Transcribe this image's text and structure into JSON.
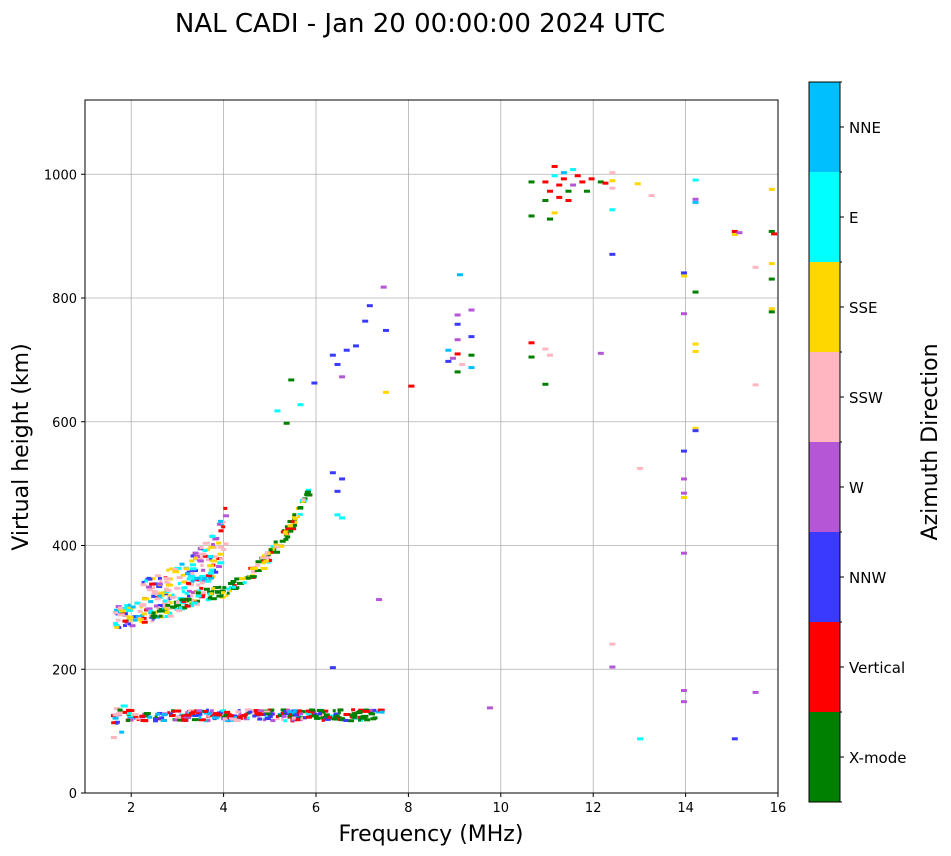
{
  "chart_data": {
    "type": "scatter",
    "title": "NAL CADI - Jan 20 00:00:00 2024 UTC",
    "xlabel": "Frequency (MHz)",
    "ylabel": "Virtual height (km)",
    "xlim": [
      1,
      16
    ],
    "ylim": [
      0,
      1120
    ],
    "xticks": [
      2,
      4,
      6,
      8,
      10,
      12,
      14,
      16
    ],
    "yticks": [
      0,
      200,
      400,
      600,
      800,
      1000
    ],
    "grid": true,
    "colorbar": {
      "label": "Azimuth Direction",
      "categories": [
        {
          "name": "X-mode",
          "color": "#008000"
        },
        {
          "name": "Vertical",
          "color": "#ff0000"
        },
        {
          "name": "NNW",
          "color": "#3a3aff"
        },
        {
          "name": "W",
          "color": "#b456d6"
        },
        {
          "name": "SSW",
          "color": "#ffb6c1"
        },
        {
          "name": "SSE",
          "color": "#ffd700"
        },
        {
          "name": "E",
          "color": "#00ffff"
        },
        {
          "name": "NNE",
          "color": "#00bfff"
        }
      ]
    },
    "traces": [
      {
        "label": "E-region trace",
        "x": [
          1.55,
          7.4
        ],
        "y_mid": 128,
        "spread": 18,
        "count": 320
      },
      {
        "label": "F-region O-mode trace",
        "curve": [
          [
            1.6,
            268
          ],
          [
            2.0,
            272
          ],
          [
            2.5,
            282
          ],
          [
            3.0,
            300
          ],
          [
            3.5,
            330
          ],
          [
            3.8,
            360
          ],
          [
            4.0,
            400
          ]
        ],
        "spread": 60,
        "count": 260
      },
      {
        "label": "F-region X-mode trace",
        "curve": [
          [
            2.4,
            282
          ],
          [
            3.0,
            300
          ],
          [
            3.6,
            320
          ],
          [
            4.0,
            322
          ],
          [
            4.5,
            350
          ],
          [
            5.0,
            385
          ],
          [
            5.5,
            440
          ],
          [
            5.8,
            490
          ]
        ],
        "spread": 20,
        "count": 180
      }
    ],
    "points": [
      {
        "x": 5.4,
        "y": 670,
        "c": 0
      },
      {
        "x": 5.3,
        "y": 600,
        "c": 0
      },
      {
        "x": 5.1,
        "y": 620,
        "c": 6
      },
      {
        "x": 5.6,
        "y": 630,
        "c": 6
      },
      {
        "x": 5.9,
        "y": 665,
        "c": 2
      },
      {
        "x": 6.3,
        "y": 710,
        "c": 2
      },
      {
        "x": 6.4,
        "y": 695,
        "c": 2
      },
      {
        "x": 6.6,
        "y": 718,
        "c": 2
      },
      {
        "x": 6.8,
        "y": 725,
        "c": 2
      },
      {
        "x": 7.0,
        "y": 765,
        "c": 2
      },
      {
        "x": 7.1,
        "y": 790,
        "c": 2
      },
      {
        "x": 6.5,
        "y": 675,
        "c": 3
      },
      {
        "x": 7.4,
        "y": 820,
        "c": 3
      },
      {
        "x": 7.45,
        "y": 750,
        "c": 2
      },
      {
        "x": 7.45,
        "y": 650,
        "c": 5
      },
      {
        "x": 8.0,
        "y": 660,
        "c": 1
      },
      {
        "x": 6.3,
        "y": 520,
        "c": 2
      },
      {
        "x": 6.4,
        "y": 490,
        "c": 2
      },
      {
        "x": 6.5,
        "y": 510,
        "c": 2
      },
      {
        "x": 6.4,
        "y": 452,
        "c": 6
      },
      {
        "x": 6.5,
        "y": 447,
        "c": 6
      },
      {
        "x": 6.3,
        "y": 205,
        "c": 2
      },
      {
        "x": 7.3,
        "y": 315,
        "c": 3
      },
      {
        "x": 8.8,
        "y": 700,
        "c": 2
      },
      {
        "x": 8.8,
        "y": 718,
        "c": 7
      },
      {
        "x": 8.9,
        "y": 705,
        "c": 3
      },
      {
        "x": 9.0,
        "y": 712,
        "c": 1
      },
      {
        "x": 9.0,
        "y": 735,
        "c": 3
      },
      {
        "x": 9.0,
        "y": 760,
        "c": 2
      },
      {
        "x": 9.0,
        "y": 775,
        "c": 3
      },
      {
        "x": 9.1,
        "y": 695,
        "c": 4
      },
      {
        "x": 9.3,
        "y": 710,
        "c": 0
      },
      {
        "x": 9.3,
        "y": 740,
        "c": 2
      },
      {
        "x": 9.3,
        "y": 783,
        "c": 3
      },
      {
        "x": 9.05,
        "y": 840,
        "c": 7
      },
      {
        "x": 9.0,
        "y": 683,
        "c": 0
      },
      {
        "x": 9.3,
        "y": 690,
        "c": 7
      },
      {
        "x": 9.7,
        "y": 140,
        "c": 3
      },
      {
        "x": 10.6,
        "y": 730,
        "c": 1
      },
      {
        "x": 10.6,
        "y": 707,
        "c": 0
      },
      {
        "x": 10.9,
        "y": 663,
        "c": 0
      },
      {
        "x": 10.9,
        "y": 720,
        "c": 4
      },
      {
        "x": 11.0,
        "y": 710,
        "c": 4
      },
      {
        "x": 12.1,
        "y": 713,
        "c": 3
      },
      {
        "x": 10.6,
        "y": 990,
        "c": 0
      },
      {
        "x": 10.6,
        "y": 935,
        "c": 0
      },
      {
        "x": 10.9,
        "y": 960,
        "c": 0
      },
      {
        "x": 10.9,
        "y": 990,
        "c": 1
      },
      {
        "x": 11.0,
        "y": 930,
        "c": 0
      },
      {
        "x": 11.0,
        "y": 975,
        "c": 1
      },
      {
        "x": 11.1,
        "y": 1015,
        "c": 1
      },
      {
        "x": 11.1,
        "y": 1000,
        "c": 6
      },
      {
        "x": 11.2,
        "y": 965,
        "c": 1
      },
      {
        "x": 11.2,
        "y": 985,
        "c": 1
      },
      {
        "x": 11.3,
        "y": 1005,
        "c": 7
      },
      {
        "x": 11.3,
        "y": 995,
        "c": 1
      },
      {
        "x": 11.4,
        "y": 975,
        "c": 0
      },
      {
        "x": 11.4,
        "y": 960,
        "c": 1
      },
      {
        "x": 11.5,
        "y": 1010,
        "c": 6
      },
      {
        "x": 11.5,
        "y": 985,
        "c": 3
      },
      {
        "x": 11.6,
        "y": 1000,
        "c": 1
      },
      {
        "x": 11.7,
        "y": 990,
        "c": 1
      },
      {
        "x": 11.8,
        "y": 975,
        "c": 0
      },
      {
        "x": 11.1,
        "y": 940,
        "c": 5
      },
      {
        "x": 11.9,
        "y": 995,
        "c": 1
      },
      {
        "x": 12.1,
        "y": 990,
        "c": 0
      },
      {
        "x": 12.2,
        "y": 988,
        "c": 1
      },
      {
        "x": 12.35,
        "y": 1005,
        "c": 4
      },
      {
        "x": 12.35,
        "y": 992,
        "c": 5
      },
      {
        "x": 12.35,
        "y": 980,
        "c": 4
      },
      {
        "x": 12.35,
        "y": 945,
        "c": 6
      },
      {
        "x": 12.35,
        "y": 873,
        "c": 2
      },
      {
        "x": 12.9,
        "y": 987,
        "c": 5
      },
      {
        "x": 13.2,
        "y": 968,
        "c": 4
      },
      {
        "x": 12.35,
        "y": 243,
        "c": 4
      },
      {
        "x": 12.35,
        "y": 206,
        "c": 3
      },
      {
        "x": 12.95,
        "y": 527,
        "c": 4
      },
      {
        "x": 12.95,
        "y": 90,
        "c": 6
      },
      {
        "x": 13.9,
        "y": 843,
        "c": 2
      },
      {
        "x": 13.9,
        "y": 838,
        "c": 5
      },
      {
        "x": 13.9,
        "y": 777,
        "c": 3
      },
      {
        "x": 13.9,
        "y": 555,
        "c": 2
      },
      {
        "x": 13.9,
        "y": 510,
        "c": 3
      },
      {
        "x": 13.9,
        "y": 487,
        "c": 3
      },
      {
        "x": 13.9,
        "y": 480,
        "c": 5
      },
      {
        "x": 13.9,
        "y": 390,
        "c": 3
      },
      {
        "x": 13.9,
        "y": 168,
        "c": 3
      },
      {
        "x": 13.9,
        "y": 150,
        "c": 3
      },
      {
        "x": 14.15,
        "y": 993,
        "c": 6
      },
      {
        "x": 14.15,
        "y": 962,
        "c": 3
      },
      {
        "x": 14.15,
        "y": 957,
        "c": 7
      },
      {
        "x": 14.15,
        "y": 812,
        "c": 0
      },
      {
        "x": 14.15,
        "y": 728,
        "c": 5
      },
      {
        "x": 14.15,
        "y": 716,
        "c": 5
      },
      {
        "x": 14.15,
        "y": 592,
        "c": 5
      },
      {
        "x": 14.15,
        "y": 588,
        "c": 2
      },
      {
        "x": 15.0,
        "y": 910,
        "c": 1
      },
      {
        "x": 15.0,
        "y": 905,
        "c": 5
      },
      {
        "x": 15.1,
        "y": 908,
        "c": 3
      },
      {
        "x": 15.45,
        "y": 852,
        "c": 4
      },
      {
        "x": 15.45,
        "y": 662,
        "c": 4
      },
      {
        "x": 15.45,
        "y": 165,
        "c": 3
      },
      {
        "x": 15.0,
        "y": 90,
        "c": 2
      },
      {
        "x": 15.8,
        "y": 978,
        "c": 5
      },
      {
        "x": 15.8,
        "y": 910,
        "c": 0
      },
      {
        "x": 15.85,
        "y": 906,
        "c": 1
      },
      {
        "x": 15.8,
        "y": 858,
        "c": 5
      },
      {
        "x": 15.8,
        "y": 833,
        "c": 0
      },
      {
        "x": 15.8,
        "y": 785,
        "c": 5
      },
      {
        "x": 15.8,
        "y": 780,
        "c": 0
      }
    ]
  }
}
